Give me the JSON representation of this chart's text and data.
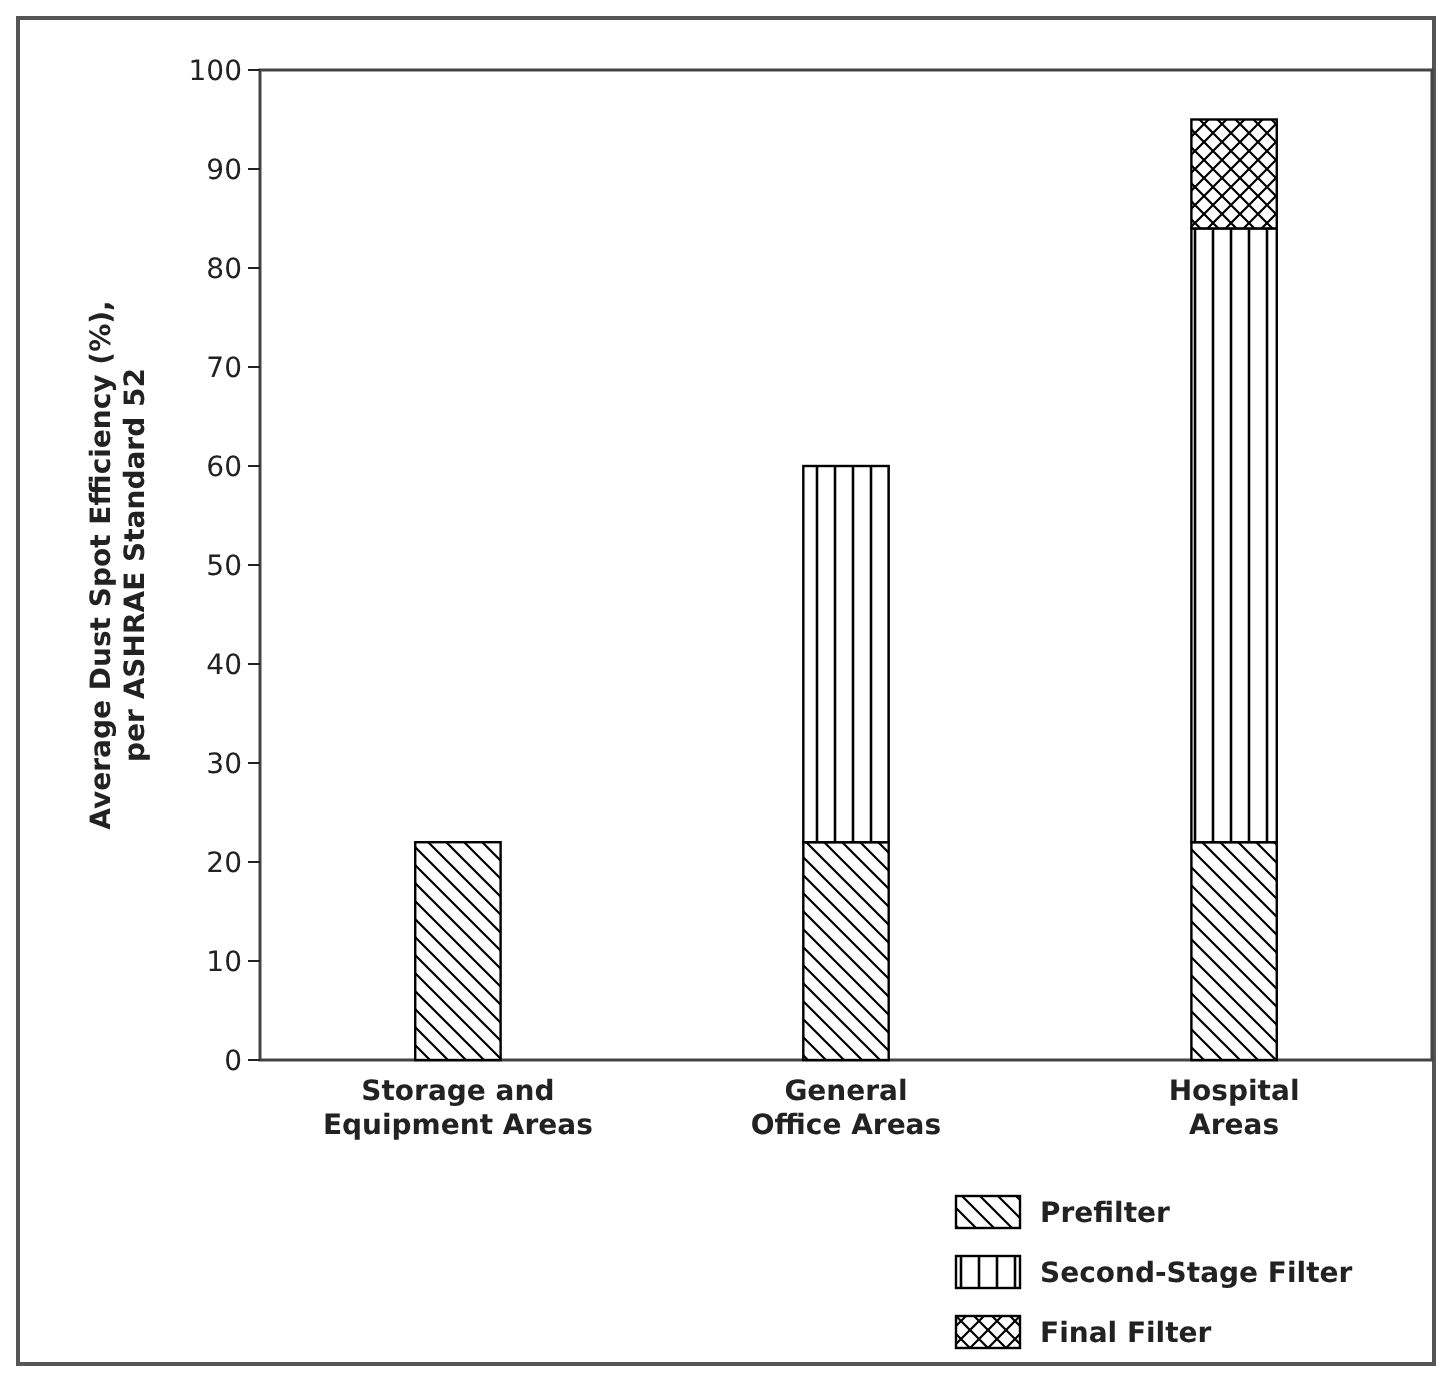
{
  "chart_data": {
    "type": "bar",
    "stacked": true,
    "ylabel": "Average Dust Spot Efficiency (%),\nper ASHRAE Standard 52",
    "categories": [
      "Storage and\nEquipment Areas",
      "General\nOffice Areas",
      "Hospital\nAreas"
    ],
    "series": [
      {
        "name": "Prefilter",
        "color": "#000000",
        "values": [
          22,
          22,
          22
        ]
      },
      {
        "name": "Second-Stage Filter",
        "color": "#000000",
        "values": [
          null,
          38,
          62
        ]
      },
      {
        "name": "Final Filter",
        "color": "#000000",
        "values": [
          null,
          null,
          11
        ]
      }
    ],
    "ylim": [
      0,
      100
    ],
    "yticks": [
      0,
      10,
      20,
      30,
      40,
      50,
      60,
      70,
      80,
      90,
      100
    ],
    "grid": false,
    "legend": "bottom right"
  }
}
